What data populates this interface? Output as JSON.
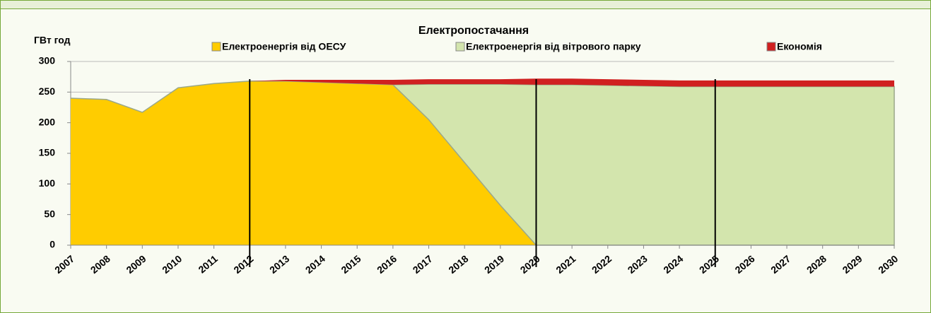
{
  "chart_data": {
    "type": "stacked_area",
    "title": "Електропостачання",
    "y_label": "ГВт год",
    "categories": [
      "2007",
      "2008",
      "2009",
      "2010",
      "2011",
      "2012",
      "2013",
      "2014",
      "2015",
      "2016",
      "2017",
      "2018",
      "2019",
      "2020",
      "2021",
      "2022",
      "2023",
      "2024",
      "2025",
      "2026",
      "2027",
      "2028",
      "2029",
      "2030"
    ],
    "series": [
      {
        "name": "Електроенергія від ОЕСУ",
        "color": "#ffcc00",
        "values": [
          240,
          238,
          217,
          257,
          264,
          268,
          268,
          266,
          264,
          262,
          205,
          135,
          65,
          0,
          0,
          0,
          0,
          0,
          0,
          0,
          0,
          0,
          0,
          0
        ]
      },
      {
        "name": "Електроенергія від вітрового парку",
        "color": "#d3e5ad",
        "values": [
          0,
          0,
          0,
          0,
          0,
          0,
          0,
          0,
          0,
          0,
          58,
          128,
          198,
          262,
          262,
          261,
          260,
          259,
          259,
          259,
          259,
          259,
          259,
          259
        ]
      },
      {
        "name": "Економія",
        "color": "#d02020",
        "values": [
          0,
          0,
          0,
          0,
          0,
          0,
          2,
          4,
          6,
          8,
          8,
          8,
          8,
          10,
          10,
          10,
          10,
          10,
          10,
          10,
          10,
          10,
          10,
          10
        ]
      }
    ],
    "vlines": [
      "2012",
      "2020",
      "2025"
    ],
    "ylim": [
      0,
      300
    ],
    "yticks": [
      0,
      50,
      100,
      150,
      200,
      250,
      300
    ],
    "grid": true
  }
}
